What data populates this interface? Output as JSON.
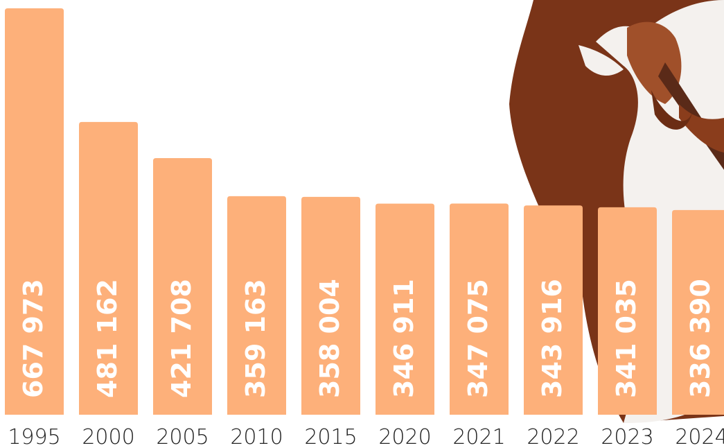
{
  "chart_data": {
    "type": "bar",
    "categories": [
      "1995",
      "2000",
      "2005",
      "2010",
      "2015",
      "2020",
      "2021",
      "2022",
      "2023",
      "2024"
    ],
    "values": [
      667973,
      481162,
      421708,
      359163,
      358004,
      346911,
      347075,
      343916,
      341035,
      336390
    ],
    "value_labels": [
      "667 973",
      "481 162",
      "421 708",
      "359 163",
      "358 004",
      "346 911",
      "347 075",
      "343 916",
      "341 035",
      "336 390"
    ],
    "color": "#fdb07a"
  }
}
